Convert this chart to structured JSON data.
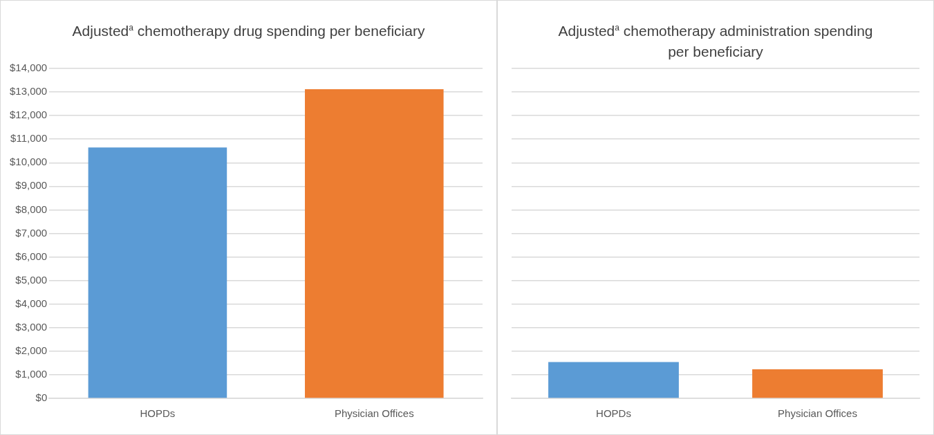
{
  "chart_data": [
    {
      "type": "bar",
      "title": "Adjusted$^{a}$ chemotherapy drug spending per beneficiary",
      "categories": [
        "HOPDs",
        "Physician Offices"
      ],
      "values": [
        10650,
        13120
      ],
      "colors": [
        "#5b9bd5",
        "#ed7d31"
      ],
      "ylim": [
        0,
        14000
      ],
      "yticks": [
        {
          "value": 0,
          "label": "$0"
        },
        {
          "value": 1000,
          "label": "$1,000"
        },
        {
          "value": 2000,
          "label": "$2,000"
        },
        {
          "value": 3000,
          "label": "$3,000"
        },
        {
          "value": 4000,
          "label": "$4,000"
        },
        {
          "value": 5000,
          "label": "$5,000"
        },
        {
          "value": 6000,
          "label": "$6,000"
        },
        {
          "value": 7000,
          "label": "$7,000"
        },
        {
          "value": 8000,
          "label": "$8,000"
        },
        {
          "value": 9000,
          "label": "$9,000"
        },
        {
          "value": 10000,
          "label": "$10,000"
        },
        {
          "value": 11000,
          "label": "$11,000"
        },
        {
          "value": 12000,
          "label": "$12,000"
        },
        {
          "value": 13000,
          "label": "$13,000"
        },
        {
          "value": 14000,
          "label": "$14,000"
        }
      ],
      "grid": "y"
    },
    {
      "type": "bar",
      "title": "Adjusted$^{a}$ chemotherapy administration spending per beneficiary",
      "categories": [
        "HOPDs",
        "Physician Offices"
      ],
      "values": [
        1540,
        1230
      ],
      "colors": [
        "#5b9bd5",
        "#ed7d31"
      ],
      "ylim": [
        0,
        14000
      ],
      "yticks": [
        0,
        1000,
        2000,
        3000,
        4000,
        5000,
        6000,
        7000,
        8000,
        9000,
        10000,
        11000,
        12000,
        13000,
        14000
      ],
      "grid": "y",
      "tick_labels": "x"
    }
  ]
}
